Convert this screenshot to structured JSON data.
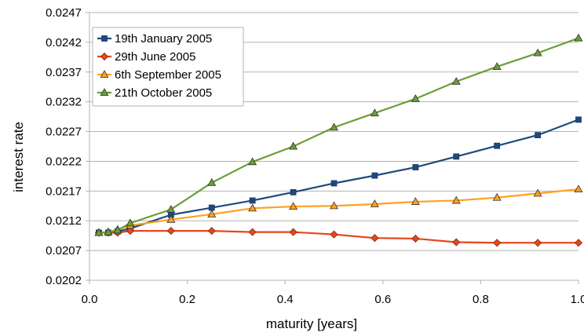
{
  "chart_data": {
    "type": "line",
    "title": "",
    "xlabel": "maturity [years]",
    "ylabel": "interest rate",
    "xlim": [
      0.0,
      1.0
    ],
    "ylim": [
      0.0202,
      0.0247
    ],
    "x_ticks": [
      "0.0",
      "0.2",
      "0.4",
      "0.6",
      "0.8",
      "1.0"
    ],
    "y_ticks": [
      "0.0202",
      "0.0207",
      "0.0212",
      "0.0217",
      "0.0222",
      "0.0227",
      "0.0232",
      "0.0237",
      "0.0242",
      "0.0247"
    ],
    "grid": "horizontal",
    "legend_position": "top-left",
    "x": [
      0.0192,
      0.0384,
      0.0575,
      0.0833,
      0.1667,
      0.25,
      0.3333,
      0.4167,
      0.5,
      0.5833,
      0.6667,
      0.75,
      0.8333,
      0.9167,
      1.0
    ],
    "series": [
      {
        "name": "19th January 2005",
        "color": "#1f497d",
        "marker": "square",
        "values": [
          0.021,
          0.021,
          0.02102,
          0.02107,
          0.0213,
          0.02142,
          0.02154,
          0.02168,
          0.02183,
          0.02196,
          0.0221,
          0.02228,
          0.02246,
          0.02264,
          0.0229
        ]
      },
      {
        "name": "29th June 2005",
        "color": "#e8461e",
        "marker": "diamond",
        "values": [
          0.021,
          0.021,
          0.021,
          0.02103,
          0.02103,
          0.02103,
          0.02101,
          0.02101,
          0.02097,
          0.02091,
          0.0209,
          0.02084,
          0.02083,
          0.02083,
          0.02083
        ]
      },
      {
        "name": "6th September 2005",
        "color": "#ffa020",
        "marker": "triangle",
        "values": [
          0.021,
          0.02101,
          0.02105,
          0.02112,
          0.02122,
          0.02131,
          0.02141,
          0.02144,
          0.02145,
          0.02148,
          0.02152,
          0.02154,
          0.02159,
          0.02166,
          0.02173
        ]
      },
      {
        "name": "21th October 2005",
        "color": "#6a9f36",
        "marker": "triangle",
        "values": [
          0.021,
          0.02101,
          0.02104,
          0.02116,
          0.02139,
          0.02184,
          0.02219,
          0.02245,
          0.02277,
          0.02301,
          0.02325,
          0.02354,
          0.02379,
          0.02402,
          0.02427
        ]
      }
    ]
  }
}
